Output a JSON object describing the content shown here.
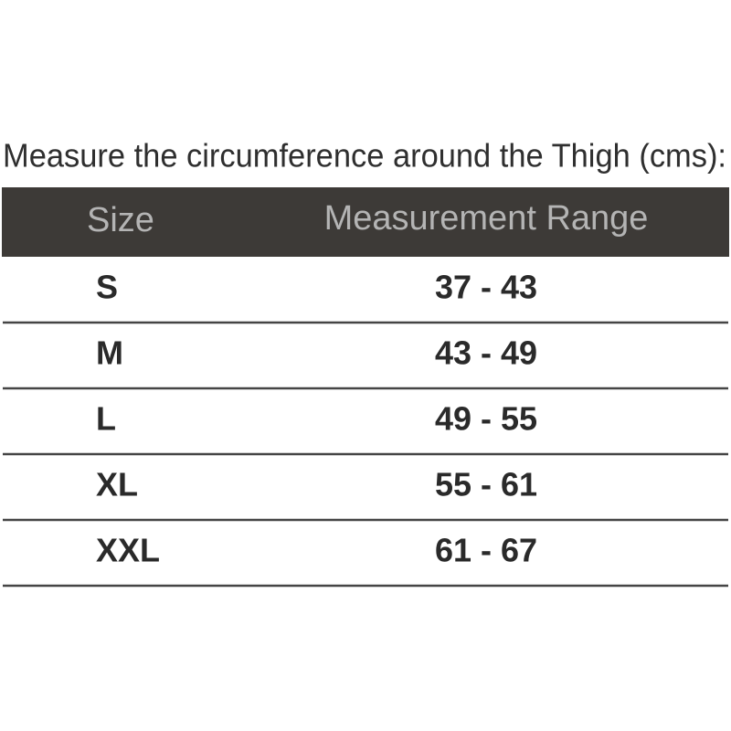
{
  "title": "Measure the circumference around the Thigh (cms):",
  "table": {
    "columns": [
      "Size",
      "Measurement Range"
    ],
    "rows": [
      [
        "S",
        "37 - 43"
      ],
      [
        "M",
        "43 - 49"
      ],
      [
        "L",
        "49 - 55"
      ],
      [
        "XL",
        "55 - 61"
      ],
      [
        "XXL",
        "61 - 67"
      ]
    ]
  }
}
